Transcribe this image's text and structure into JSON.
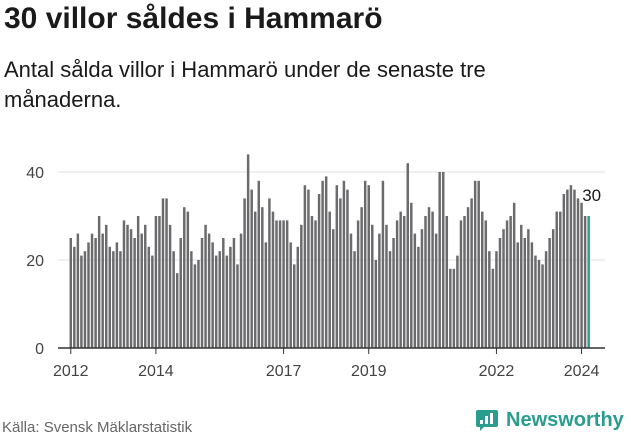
{
  "title": "30 villor såldes i Hammarö",
  "subtitle": "Antal sålda villor i Hammarö under de senaste tre månaderna.",
  "source": "Källa: Svensk Mäklarstatistik",
  "brand": {
    "name": "Newsworthy",
    "icon": "newsworthy-logo-icon",
    "color": "#2a9d8f"
  },
  "colors": {
    "bar": "#6b6b6e",
    "highlight": "#2a9d8f",
    "grid": "#e2e2e2",
    "axis": "#333333"
  },
  "chart_data": {
    "type": "bar",
    "title": "30 villor såldes i Hammarö",
    "xlabel": "",
    "ylabel": "",
    "ylim": [
      0,
      45
    ],
    "yticks": [
      0,
      20,
      40
    ],
    "xlim": [
      2011.7,
      2024.55
    ],
    "xticks": [
      2012,
      2014,
      2017,
      2019,
      2022,
      2024
    ],
    "x_start": 2012.0,
    "x_step": 0.08333,
    "highlight_label": "30",
    "values": [
      25,
      23,
      26,
      21,
      22,
      24,
      26,
      25,
      30,
      26,
      28,
      23,
      22,
      24,
      22,
      29,
      28,
      27,
      25,
      30,
      26,
      28,
      23,
      21,
      30,
      30,
      34,
      34,
      28,
      22,
      17,
      25,
      32,
      31,
      22,
      19,
      20,
      25,
      28,
      26,
      24,
      21,
      22,
      25,
      21,
      23,
      25,
      19,
      26,
      34,
      44,
      36,
      31,
      38,
      32,
      24,
      34,
      31,
      29,
      29,
      29,
      29,
      24,
      19,
      23,
      28,
      37,
      36,
      30,
      29,
      35,
      38,
      39,
      31,
      27,
      37,
      34,
      38,
      36,
      26,
      22,
      29,
      32,
      38,
      37,
      28,
      20,
      26,
      38,
      28,
      22,
      25,
      29,
      31,
      30,
      42,
      33,
      26,
      23,
      27,
      30,
      32,
      31,
      26,
      40,
      40,
      30,
      18,
      18,
      21,
      29,
      30,
      32,
      34,
      38,
      38,
      31,
      29,
      22,
      18,
      22,
      25,
      27,
      29,
      30,
      33,
      24,
      28,
      25,
      27,
      24,
      21,
      20,
      19,
      22,
      25,
      27,
      31,
      31,
      35,
      36,
      37,
      36,
      34,
      33,
      30,
      30
    ]
  }
}
